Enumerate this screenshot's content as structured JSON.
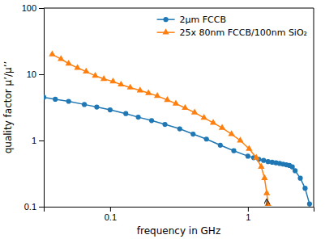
{
  "chart_data": {
    "type": "line",
    "xlabel": "frequency in GHz",
    "ylabel": "quality factor μ’/μ’’",
    "log": true,
    "xlim": [
      0.033,
      3.0
    ],
    "ylim": [
      0.1,
      100
    ],
    "xticks": [
      0.1,
      1
    ],
    "yticks": [
      0.1,
      1,
      10,
      100
    ],
    "grid": false,
    "legend": "upper right",
    "series": [
      {
        "name": "2μm FCCB",
        "marker": "circle",
        "x": [
          0.033,
          0.04,
          0.05,
          0.065,
          0.08,
          0.1,
          0.13,
          0.16,
          0.2,
          0.25,
          0.32,
          0.4,
          0.5,
          0.63,
          0.79,
          1.0,
          1.1,
          1.2,
          1.3,
          1.4,
          1.5,
          1.6,
          1.7,
          1.8,
          1.9,
          2.0,
          2.1,
          2.2,
          2.4,
          2.6,
          2.8
        ],
        "values": [
          4.5,
          4.2,
          3.9,
          3.5,
          3.2,
          2.9,
          2.55,
          2.25,
          2.0,
          1.75,
          1.5,
          1.25,
          1.05,
          0.85,
          0.7,
          0.58,
          0.55,
          0.52,
          0.5,
          0.48,
          0.47,
          0.46,
          0.45,
          0.44,
          0.43,
          0.42,
          0.4,
          0.35,
          0.27,
          0.19,
          0.11
        ]
      },
      {
        "name": "25x 80nm FCCB/100nm SiO₂",
        "marker": "triangle",
        "x": [
          0.038,
          0.044,
          0.05,
          0.058,
          0.067,
          0.078,
          0.09,
          0.105,
          0.12,
          0.14,
          0.165,
          0.19,
          0.22,
          0.26,
          0.3,
          0.35,
          0.41,
          0.48,
          0.56,
          0.65,
          0.76,
          0.88,
          1.02,
          1.15,
          1.25,
          1.32,
          1.37,
          1.4
        ],
        "values": [
          20.0,
          17.0,
          14.5,
          12.5,
          11.0,
          9.5,
          8.5,
          7.8,
          7.0,
          6.3,
          5.7,
          5.2,
          4.7,
          4.1,
          3.6,
          3.1,
          2.65,
          2.2,
          1.85,
          1.55,
          1.25,
          1.0,
          0.75,
          0.55,
          0.4,
          0.27,
          0.16,
          0.11
        ]
      }
    ],
    "annotations": [
      {
        "x": 1.37,
        "y": 0.13,
        "x_from": 1.37,
        "y_from": 0.105
      }
    ]
  }
}
